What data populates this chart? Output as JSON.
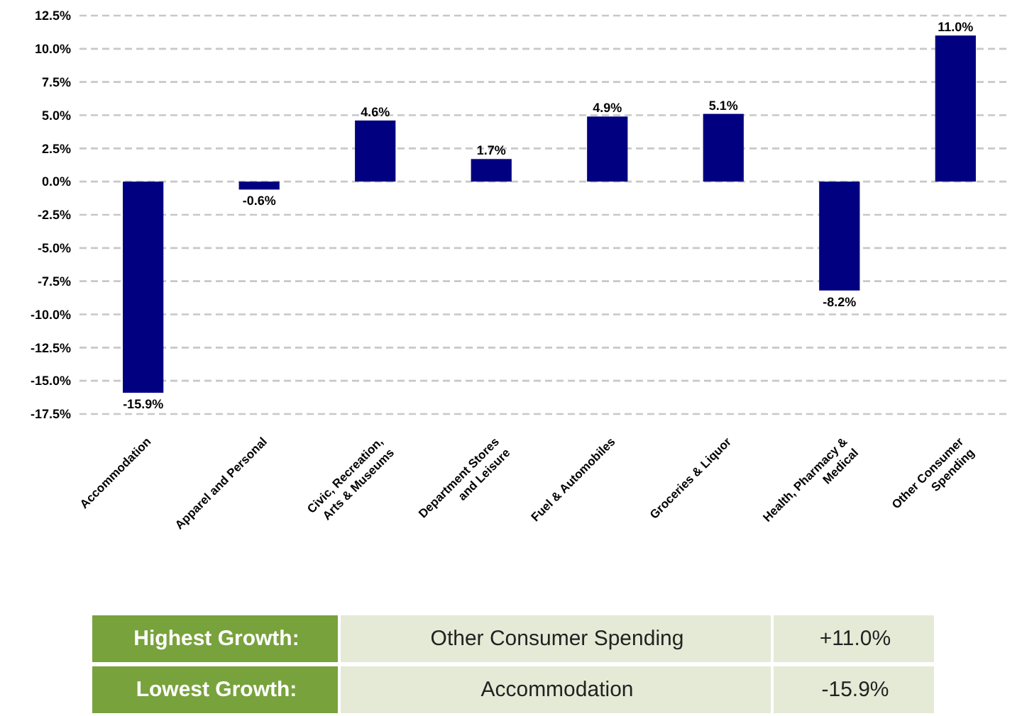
{
  "chart_data": {
    "type": "bar",
    "categories": [
      "Accommodation",
      "Apparel and Personal",
      "Civic, Recreation, Arts & Museums",
      "Department Stores and Leisure",
      "Fuel & Automobiles",
      "Groceries & Liquor",
      "Health, Pharmacy & Medical",
      "Other Consumer Spending"
    ],
    "values": [
      -15.9,
      -0.6,
      4.6,
      1.7,
      4.9,
      5.1,
      -8.2,
      11.0
    ],
    "value_labels": [
      "-15.9%",
      "-0.6%",
      "4.6%",
      "1.7%",
      "4.9%",
      "5.1%",
      "-8.2%",
      "11.0%"
    ],
    "color": "#000080",
    "ylim": [
      -17.5,
      12.5
    ],
    "yticks": [
      {
        "value": 12.5,
        "label": "12.5%"
      },
      {
        "value": 10,
        "label": "10.0%"
      },
      {
        "value": 7.5,
        "label": "7.5%"
      },
      {
        "value": 5,
        "label": "5.0%"
      },
      {
        "value": 2.5,
        "label": "2.5%"
      },
      {
        "value": 0,
        "label": "0.0%"
      },
      {
        "value": -2.5,
        "label": "-2.5%"
      },
      {
        "value": -5,
        "label": "-5.0%"
      },
      {
        "value": -7.5,
        "label": "-7.5%"
      },
      {
        "value": -10,
        "label": "-10.0%"
      },
      {
        "value": -12.5,
        "label": "-12.5%"
      },
      {
        "value": -15,
        "label": "-15.0%"
      },
      {
        "value": -17.5,
        "label": "-17.5%"
      }
    ],
    "grid": "y",
    "annotations": [
      "Highest Growth:",
      "Other Consumer Spending",
      "+11.0%",
      "Lowest Growth:",
      "Accommodation",
      "-15.9%"
    ]
  }
}
